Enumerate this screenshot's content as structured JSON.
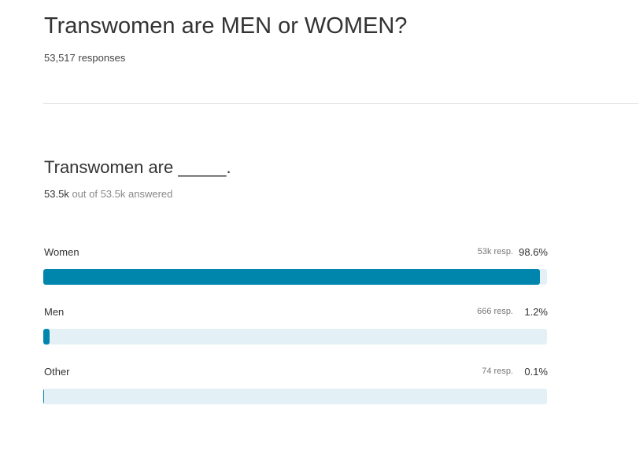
{
  "header": {
    "title": "Transwomen are MEN or WOMEN?",
    "responses": "53,517 responses"
  },
  "question": {
    "title": "Transwomen are _____.",
    "answered_count": "53.5k",
    "answered_text": "out of 53.5k answered"
  },
  "chart_data": {
    "type": "bar",
    "orientation": "horizontal",
    "categories": [
      "Women",
      "Men",
      "Other"
    ],
    "values": [
      98.6,
      1.2,
      0.1
    ],
    "value_labels": [
      "98.6%",
      "1.2%",
      "0.1%"
    ],
    "response_labels": [
      "53k resp.",
      "666 resp.",
      "74 resp."
    ],
    "xlim": [
      0,
      100
    ],
    "color": "#0086ad",
    "track_color": "#e3f1f6"
  }
}
